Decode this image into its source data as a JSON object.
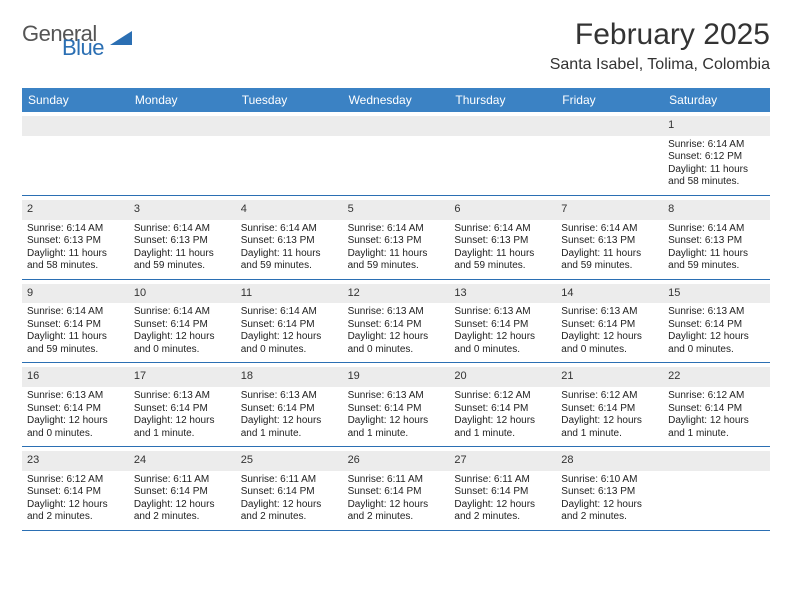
{
  "logo": {
    "text1": "General",
    "text2": "Blue"
  },
  "title": {
    "month": "February 2025",
    "location": "Santa Isabel, Tolima, Colombia"
  },
  "colors": {
    "header_bg": "#3b82c4",
    "header_text": "#ffffff",
    "rule": "#2b6fb3",
    "daynum_bg": "#ececec",
    "text": "#222222",
    "logo_gray": "#555555",
    "logo_blue": "#2b6fb3"
  },
  "daysOfWeek": [
    "Sunday",
    "Monday",
    "Tuesday",
    "Wednesday",
    "Thursday",
    "Friday",
    "Saturday"
  ],
  "weeks": [
    [
      {
        "n": "",
        "lines": []
      },
      {
        "n": "",
        "lines": []
      },
      {
        "n": "",
        "lines": []
      },
      {
        "n": "",
        "lines": []
      },
      {
        "n": "",
        "lines": []
      },
      {
        "n": "",
        "lines": []
      },
      {
        "n": "1",
        "lines": [
          "Sunrise: 6:14 AM",
          "Sunset: 6:12 PM",
          "Daylight: 11 hours and 58 minutes."
        ]
      }
    ],
    [
      {
        "n": "2",
        "lines": [
          "Sunrise: 6:14 AM",
          "Sunset: 6:13 PM",
          "Daylight: 11 hours and 58 minutes."
        ]
      },
      {
        "n": "3",
        "lines": [
          "Sunrise: 6:14 AM",
          "Sunset: 6:13 PM",
          "Daylight: 11 hours and 59 minutes."
        ]
      },
      {
        "n": "4",
        "lines": [
          "Sunrise: 6:14 AM",
          "Sunset: 6:13 PM",
          "Daylight: 11 hours and 59 minutes."
        ]
      },
      {
        "n": "5",
        "lines": [
          "Sunrise: 6:14 AM",
          "Sunset: 6:13 PM",
          "Daylight: 11 hours and 59 minutes."
        ]
      },
      {
        "n": "6",
        "lines": [
          "Sunrise: 6:14 AM",
          "Sunset: 6:13 PM",
          "Daylight: 11 hours and 59 minutes."
        ]
      },
      {
        "n": "7",
        "lines": [
          "Sunrise: 6:14 AM",
          "Sunset: 6:13 PM",
          "Daylight: 11 hours and 59 minutes."
        ]
      },
      {
        "n": "8",
        "lines": [
          "Sunrise: 6:14 AM",
          "Sunset: 6:13 PM",
          "Daylight: 11 hours and 59 minutes."
        ]
      }
    ],
    [
      {
        "n": "9",
        "lines": [
          "Sunrise: 6:14 AM",
          "Sunset: 6:14 PM",
          "Daylight: 11 hours and 59 minutes."
        ]
      },
      {
        "n": "10",
        "lines": [
          "Sunrise: 6:14 AM",
          "Sunset: 6:14 PM",
          "Daylight: 12 hours and 0 minutes."
        ]
      },
      {
        "n": "11",
        "lines": [
          "Sunrise: 6:14 AM",
          "Sunset: 6:14 PM",
          "Daylight: 12 hours and 0 minutes."
        ]
      },
      {
        "n": "12",
        "lines": [
          "Sunrise: 6:13 AM",
          "Sunset: 6:14 PM",
          "Daylight: 12 hours and 0 minutes."
        ]
      },
      {
        "n": "13",
        "lines": [
          "Sunrise: 6:13 AM",
          "Sunset: 6:14 PM",
          "Daylight: 12 hours and 0 minutes."
        ]
      },
      {
        "n": "14",
        "lines": [
          "Sunrise: 6:13 AM",
          "Sunset: 6:14 PM",
          "Daylight: 12 hours and 0 minutes."
        ]
      },
      {
        "n": "15",
        "lines": [
          "Sunrise: 6:13 AM",
          "Sunset: 6:14 PM",
          "Daylight: 12 hours and 0 minutes."
        ]
      }
    ],
    [
      {
        "n": "16",
        "lines": [
          "Sunrise: 6:13 AM",
          "Sunset: 6:14 PM",
          "Daylight: 12 hours and 0 minutes."
        ]
      },
      {
        "n": "17",
        "lines": [
          "Sunrise: 6:13 AM",
          "Sunset: 6:14 PM",
          "Daylight: 12 hours and 1 minute."
        ]
      },
      {
        "n": "18",
        "lines": [
          "Sunrise: 6:13 AM",
          "Sunset: 6:14 PM",
          "Daylight: 12 hours and 1 minute."
        ]
      },
      {
        "n": "19",
        "lines": [
          "Sunrise: 6:13 AM",
          "Sunset: 6:14 PM",
          "Daylight: 12 hours and 1 minute."
        ]
      },
      {
        "n": "20",
        "lines": [
          "Sunrise: 6:12 AM",
          "Sunset: 6:14 PM",
          "Daylight: 12 hours and 1 minute."
        ]
      },
      {
        "n": "21",
        "lines": [
          "Sunrise: 6:12 AM",
          "Sunset: 6:14 PM",
          "Daylight: 12 hours and 1 minute."
        ]
      },
      {
        "n": "22",
        "lines": [
          "Sunrise: 6:12 AM",
          "Sunset: 6:14 PM",
          "Daylight: 12 hours and 1 minute."
        ]
      }
    ],
    [
      {
        "n": "23",
        "lines": [
          "Sunrise: 6:12 AM",
          "Sunset: 6:14 PM",
          "Daylight: 12 hours and 2 minutes."
        ]
      },
      {
        "n": "24",
        "lines": [
          "Sunrise: 6:11 AM",
          "Sunset: 6:14 PM",
          "Daylight: 12 hours and 2 minutes."
        ]
      },
      {
        "n": "25",
        "lines": [
          "Sunrise: 6:11 AM",
          "Sunset: 6:14 PM",
          "Daylight: 12 hours and 2 minutes."
        ]
      },
      {
        "n": "26",
        "lines": [
          "Sunrise: 6:11 AM",
          "Sunset: 6:14 PM",
          "Daylight: 12 hours and 2 minutes."
        ]
      },
      {
        "n": "27",
        "lines": [
          "Sunrise: 6:11 AM",
          "Sunset: 6:14 PM",
          "Daylight: 12 hours and 2 minutes."
        ]
      },
      {
        "n": "28",
        "lines": [
          "Sunrise: 6:10 AM",
          "Sunset: 6:13 PM",
          "Daylight: 12 hours and 2 minutes."
        ]
      },
      {
        "n": "",
        "lines": []
      }
    ]
  ]
}
